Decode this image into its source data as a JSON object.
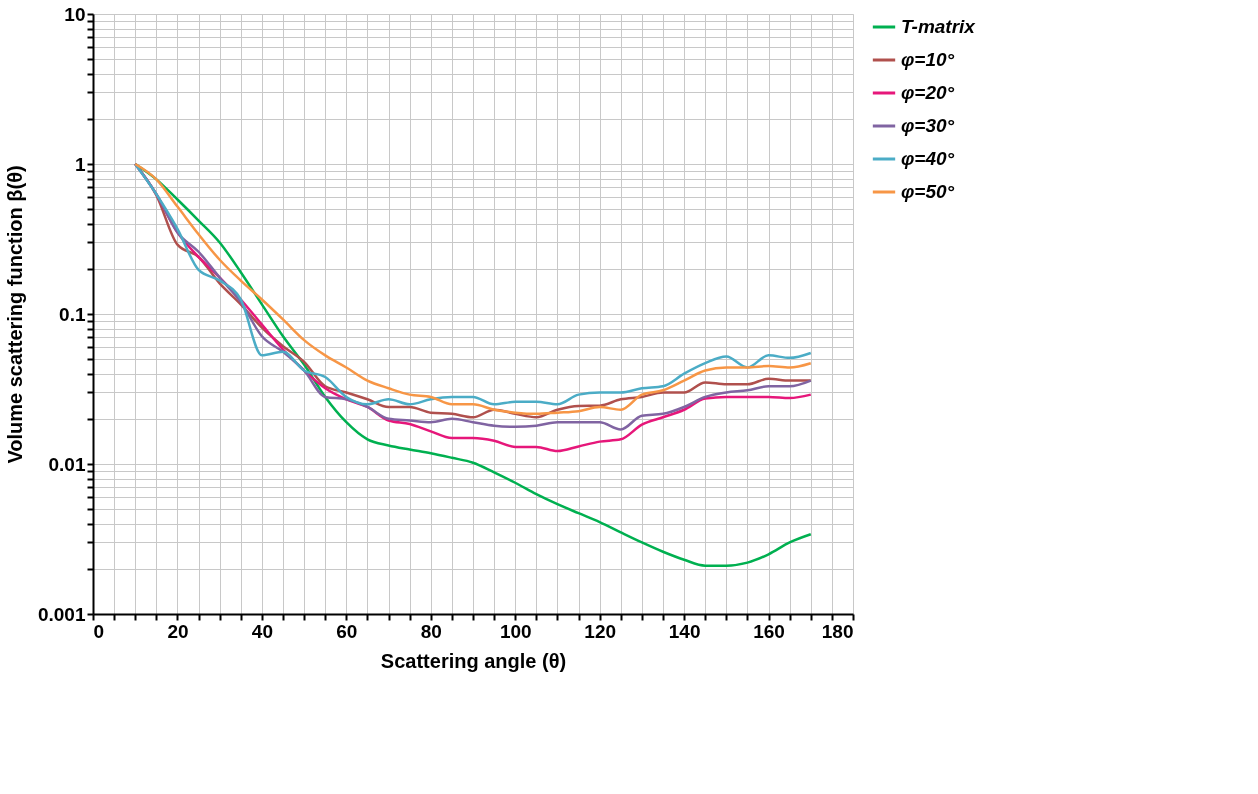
{
  "chart_data": {
    "type": "line",
    "xlabel": "Scattering angle (θ)",
    "ylabel": "Volume scattering function β(θ)",
    "x": [
      10,
      15,
      20,
      25,
      30,
      35,
      40,
      45,
      50,
      55,
      60,
      65,
      70,
      75,
      80,
      85,
      90,
      95,
      100,
      105,
      110,
      115,
      120,
      125,
      130,
      135,
      140,
      145,
      150,
      155,
      160,
      165,
      170
    ],
    "series": [
      {
        "name": "T-matrix",
        "color": "#00b050",
        "values": [
          1,
          0.79,
          0.58,
          0.42,
          0.3,
          0.19,
          0.116,
          0.071,
          0.046,
          0.028,
          0.019,
          0.0146,
          0.0133,
          0.0125,
          0.0118,
          0.011,
          0.0102,
          0.0088,
          0.0075,
          0.0063,
          0.0054,
          0.0047,
          0.0041,
          0.0035,
          0.003,
          0.0026,
          0.0023,
          0.0021,
          0.0021,
          0.0022,
          0.0025,
          0.003,
          0.0034
        ]
      },
      {
        "name": "φ=10°",
        "color": "#b0504d",
        "values": [
          1,
          0.62,
          0.29,
          0.24,
          0.16,
          0.116,
          0.081,
          0.061,
          0.048,
          0.033,
          0.03,
          0.027,
          0.024,
          0.024,
          0.022,
          0.0216,
          0.0205,
          0.023,
          0.0216,
          0.0205,
          0.023,
          0.0244,
          0.0245,
          0.027,
          0.028,
          0.03,
          0.03,
          0.035,
          0.034,
          0.034,
          0.037,
          0.036,
          0.036
        ]
      },
      {
        "name": "φ=20°",
        "color": "#e6177a",
        "values": [
          1,
          0.63,
          0.35,
          0.24,
          0.175,
          0.125,
          0.085,
          0.058,
          0.042,
          0.032,
          0.027,
          0.024,
          0.0195,
          0.0185,
          0.0165,
          0.0149,
          0.0149,
          0.0143,
          0.013,
          0.013,
          0.0122,
          0.0131,
          0.0141,
          0.0146,
          0.0183,
          0.0205,
          0.023,
          0.0273,
          0.028,
          0.028,
          0.028,
          0.0275,
          0.029
        ]
      },
      {
        "name": "φ=30°",
        "color": "#8064a2",
        "values": [
          1,
          0.63,
          0.35,
          0.26,
          0.175,
          0.12,
          0.071,
          0.056,
          0.042,
          0.028,
          0.027,
          0.024,
          0.02,
          0.0195,
          0.019,
          0.02,
          0.019,
          0.018,
          0.0177,
          0.018,
          0.019,
          0.019,
          0.019,
          0.017,
          0.021,
          0.0216,
          0.024,
          0.028,
          0.03,
          0.031,
          0.033,
          0.033,
          0.036
        ]
      },
      {
        "name": "φ=40°",
        "color": "#4bacc6",
        "values": [
          1,
          0.63,
          0.37,
          0.197,
          0.167,
          0.125,
          0.053,
          0.056,
          0.042,
          0.038,
          0.028,
          0.025,
          0.027,
          0.025,
          0.027,
          0.028,
          0.028,
          0.025,
          0.026,
          0.026,
          0.025,
          0.029,
          0.03,
          0.03,
          0.032,
          0.033,
          0.04,
          0.047,
          0.052,
          0.044,
          0.053,
          0.051,
          0.055
        ]
      },
      {
        "name": "φ=50°",
        "color": "#f79646",
        "values": [
          1,
          0.79,
          0.52,
          0.34,
          0.23,
          0.167,
          0.125,
          0.092,
          0.067,
          0.053,
          0.044,
          0.036,
          0.032,
          0.029,
          0.028,
          0.025,
          0.025,
          0.023,
          0.022,
          0.0216,
          0.022,
          0.0225,
          0.024,
          0.023,
          0.029,
          0.031,
          0.036,
          0.042,
          0.044,
          0.044,
          0.045,
          0.044,
          0.047
        ]
      }
    ],
    "xlim": [
      0,
      180
    ],
    "xticks": [
      0,
      {
        "value": 5,
        "label": null
      },
      {
        "value": 10,
        "label": null
      },
      {
        "value": 15,
        "label": null
      },
      20,
      {
        "value": 25,
        "label": null
      },
      {
        "value": 30,
        "label": null
      },
      {
        "value": 35,
        "label": null
      },
      40,
      {
        "value": 45,
        "label": null
      },
      {
        "value": 50,
        "label": null
      },
      {
        "value": 55,
        "label": null
      },
      60,
      {
        "value": 65,
        "label": null
      },
      {
        "value": 70,
        "label": null
      },
      {
        "value": 75,
        "label": null
      },
      80,
      {
        "value": 85,
        "label": null
      },
      {
        "value": 90,
        "label": null
      },
      {
        "value": 95,
        "label": null
      },
      100,
      {
        "value": 105,
        "label": null
      },
      {
        "value": 110,
        "label": null
      },
      {
        "value": 115,
        "label": null
      },
      120,
      {
        "value": 125,
        "label": null
      },
      {
        "value": 130,
        "label": null
      },
      {
        "value": 135,
        "label": null
      },
      140,
      {
        "value": 145,
        "label": null
      },
      {
        "value": 150,
        "label": null
      },
      {
        "value": 155,
        "label": null
      },
      160,
      {
        "value": 165,
        "label": null
      },
      {
        "value": 170,
        "label": null
      },
      {
        "value": 175,
        "label": null
      },
      180
    ],
    "ylim": [
      0.001,
      10
    ],
    "yticks": [
      0.001,
      {
        "value": 0.002,
        "label": null
      },
      {
        "value": 0.003,
        "label": null
      },
      {
        "value": 0.004,
        "label": null
      },
      {
        "value": 0.005,
        "label": null
      },
      {
        "value": 0.006,
        "label": null
      },
      {
        "value": 0.007,
        "label": null
      },
      {
        "value": 0.008,
        "label": null
      },
      {
        "value": 0.009,
        "label": null
      },
      0.01,
      {
        "value": 0.02,
        "label": null
      },
      {
        "value": 0.03,
        "label": null
      },
      {
        "value": 0.04,
        "label": null
      },
      {
        "value": 0.05,
        "label": null
      },
      {
        "value": 0.06,
        "label": null
      },
      {
        "value": 0.07,
        "label": null
      },
      {
        "value": 0.08,
        "label": null
      },
      {
        "value": 0.09,
        "label": null
      },
      0.1,
      {
        "value": 0.2,
        "label": null
      },
      {
        "value": 0.3,
        "label": null
      },
      {
        "value": 0.4,
        "label": null
      },
      {
        "value": 0.5,
        "label": null
      },
      {
        "value": 0.6,
        "label": null
      },
      {
        "value": 0.7,
        "label": null
      },
      {
        "value": 0.8,
        "label": null
      },
      {
        "value": 0.9,
        "label": null
      },
      1,
      {
        "value": 2,
        "label": null
      },
      {
        "value": 3,
        "label": null
      },
      {
        "value": 4,
        "label": null
      },
      {
        "value": 5,
        "label": null
      },
      {
        "value": 6,
        "label": null
      },
      {
        "value": 7,
        "label": null
      },
      {
        "value": 8,
        "label": null
      },
      {
        "value": 9,
        "label": null
      },
      10
    ],
    "log": true,
    "grid": true,
    "legend": "right",
    "marker": "none",
    "line_style": "solid"
  }
}
